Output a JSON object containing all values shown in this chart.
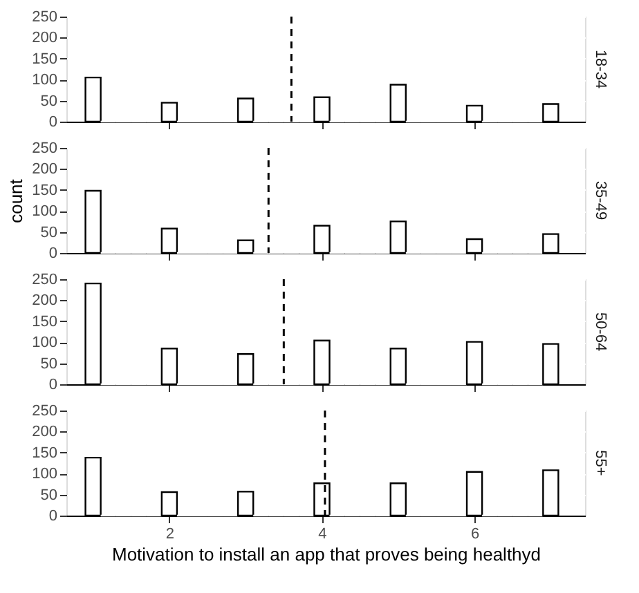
{
  "chart_data": [
    {
      "type": "histogram",
      "title": "18-34",
      "bins": [
        0.9,
        1.1,
        1.3,
        1.5,
        1.7,
        1.9,
        2.1,
        2.3,
        2.5,
        2.7,
        2.9,
        3.1,
        3.3,
        3.5,
        3.7,
        3.9,
        4.1,
        4.3,
        4.5,
        4.7,
        4.9,
        5.1,
        5.3,
        5.5,
        5.7,
        5.9,
        6.1,
        6.3,
        6.5,
        6.7,
        6.9,
        7.1
      ],
      "values": [
        105,
        0,
        0,
        0,
        0,
        45,
        0,
        0,
        0,
        0,
        55,
        0,
        0,
        0,
        0,
        58,
        0,
        0,
        0,
        0,
        88,
        0,
        0,
        0,
        0,
        38,
        0,
        0,
        0,
        0,
        42
      ],
      "color": "#ffffff",
      "xlim": [
        0.65,
        7.45
      ],
      "xticks": [
        2,
        4,
        6
      ],
      "ylim": [
        0,
        250
      ],
      "yticks": [
        0,
        50,
        100,
        150,
        200,
        250
      ],
      "grid": true,
      "tick_labels": "y",
      "ref_lines": [
        {
          "axis": "x",
          "value": 3.6,
          "line_style": "dashed",
          "color": "#000000"
        }
      ]
    },
    {
      "type": "histogram",
      "title": "35-49",
      "ylabel": "count",
      "bins": [
        0.9,
        1.1,
        1.3,
        1.5,
        1.7,
        1.9,
        2.1,
        2.3,
        2.5,
        2.7,
        2.9,
        3.1,
        3.3,
        3.5,
        3.7,
        3.9,
        4.1,
        4.3,
        4.5,
        4.7,
        4.9,
        5.1,
        5.3,
        5.5,
        5.7,
        5.9,
        6.1,
        6.3,
        6.5,
        6.7,
        6.9,
        7.1
      ],
      "values": [
        148,
        0,
        0,
        0,
        0,
        58,
        0,
        0,
        0,
        0,
        30,
        0,
        0,
        0,
        0,
        65,
        0,
        0,
        0,
        0,
        75,
        0,
        0,
        0,
        0,
        33,
        0,
        0,
        0,
        0,
        45
      ],
      "color": "#ffffff",
      "xlim": [
        0.65,
        7.45
      ],
      "xticks": [
        2,
        4,
        6
      ],
      "ylim": [
        0,
        250
      ],
      "yticks": [
        0,
        50,
        100,
        150,
        200,
        250
      ],
      "grid": true,
      "tick_labels": "y",
      "ref_lines": [
        {
          "axis": "x",
          "value": 3.3,
          "line_style": "dashed",
          "color": "#000000"
        }
      ]
    },
    {
      "type": "histogram",
      "title": "50-64",
      "bins": [
        0.9,
        1.1,
        1.3,
        1.5,
        1.7,
        1.9,
        2.1,
        2.3,
        2.5,
        2.7,
        2.9,
        3.1,
        3.3,
        3.5,
        3.7,
        3.9,
        4.1,
        4.3,
        4.5,
        4.7,
        4.9,
        5.1,
        5.3,
        5.5,
        5.7,
        5.9,
        6.1,
        6.3,
        6.5,
        6.7,
        6.9,
        7.1
      ],
      "values": [
        240,
        0,
        0,
        0,
        0,
        85,
        0,
        0,
        0,
        0,
        72,
        0,
        0,
        0,
        0,
        104,
        0,
        0,
        0,
        0,
        85,
        0,
        0,
        0,
        0,
        101,
        0,
        0,
        0,
        0,
        96
      ],
      "color": "#ffffff",
      "xlim": [
        0.65,
        7.45
      ],
      "xticks": [
        2,
        4,
        6
      ],
      "ylim": [
        0,
        250
      ],
      "yticks": [
        0,
        50,
        100,
        150,
        200,
        250
      ],
      "grid": true,
      "tick_labels": "y",
      "ref_lines": [
        {
          "axis": "x",
          "value": 3.5,
          "line_style": "dashed",
          "color": "#000000"
        }
      ]
    },
    {
      "type": "histogram",
      "title": "55+",
      "xlabel": "Motivation to install an app that proves being healthyd",
      "bins": [
        0.9,
        1.1,
        1.3,
        1.5,
        1.7,
        1.9,
        2.1,
        2.3,
        2.5,
        2.7,
        2.9,
        3.1,
        3.3,
        3.5,
        3.7,
        3.9,
        4.1,
        4.3,
        4.5,
        4.7,
        4.9,
        5.1,
        5.3,
        5.5,
        5.7,
        5.9,
        6.1,
        6.3,
        6.5,
        6.7,
        6.9,
        7.1
      ],
      "values": [
        138,
        0,
        0,
        0,
        0,
        56,
        0,
        0,
        0,
        0,
        57,
        0,
        0,
        0,
        0,
        77,
        0,
        0,
        0,
        0,
        77,
        0,
        0,
        0,
        0,
        104,
        0,
        0,
        0,
        0,
        108
      ],
      "color": "#ffffff",
      "xlim": [
        0.65,
        7.45
      ],
      "xticks": [
        2,
        4,
        6
      ],
      "ylim": [
        0,
        250
      ],
      "yticks": [
        0,
        50,
        100,
        150,
        200,
        250
      ],
      "grid": true,
      "ref_lines": [
        {
          "axis": "x",
          "value": 4.04,
          "line_style": "dashed",
          "color": "#000000"
        }
      ]
    }
  ]
}
